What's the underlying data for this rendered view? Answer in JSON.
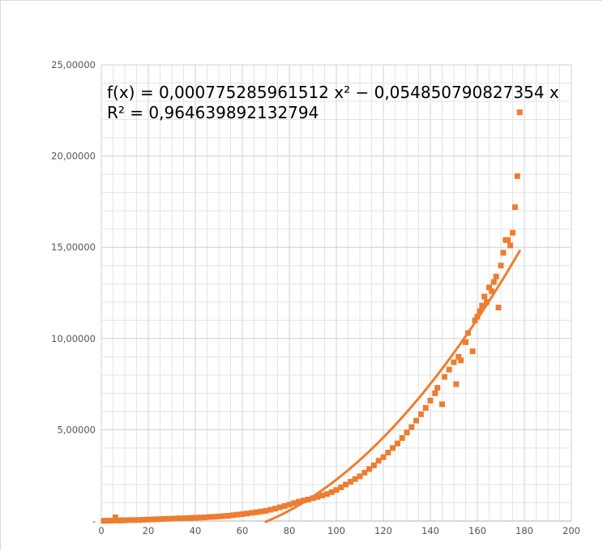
{
  "chart_data": {
    "type": "scatter",
    "title": "",
    "xlabel": "",
    "ylabel": "",
    "xlim": [
      0,
      200
    ],
    "ylim": [
      0,
      25
    ],
    "x_ticks": [
      "0",
      "20",
      "40",
      "60",
      "80",
      "100",
      "120",
      "140",
      "160",
      "180",
      "200"
    ],
    "y_ticks": [
      "-",
      "5,00000",
      "10,00000",
      "15,00000",
      "20,00000",
      "25,00000"
    ],
    "grid": true,
    "legend": "none",
    "marker_color": "#ed7d31",
    "trendline_color": "#ed7d31",
    "trendline_equation": "f(x) = 0,000775285961512 x² − 0,054850790827354 x",
    "trendline_r2": "R² = 0,964639892132794",
    "trendline": {
      "a": 0.000775285961512,
      "b": -0.054850790827354,
      "x_from": 70,
      "x_to": 178
    },
    "series": [
      {
        "x": [
          1,
          2,
          3,
          4,
          5,
          6,
          7,
          8,
          9,
          10,
          12,
          14,
          16,
          18,
          20,
          22,
          24,
          26,
          28,
          30,
          32,
          34,
          36,
          38,
          40,
          42,
          44,
          46,
          48,
          50,
          52,
          54,
          56,
          58,
          60,
          62,
          64,
          66,
          68,
          70,
          72,
          74,
          76,
          78,
          80,
          82,
          84,
          86,
          88,
          90,
          92,
          94,
          96,
          98,
          100,
          102,
          104,
          106,
          108,
          110,
          112,
          114,
          116,
          118,
          120,
          122,
          124,
          126,
          128,
          130,
          132,
          134,
          136,
          138,
          140,
          142,
          143,
          145,
          146,
          148,
          150,
          151,
          152,
          153,
          155,
          156,
          158,
          159,
          160,
          161,
          162,
          163,
          164,
          165,
          166,
          167,
          168,
          169,
          170,
          171,
          172,
          173,
          174,
          175,
          176,
          177,
          178
        ],
        "y": [
          0.01,
          0.02,
          0.02,
          0.02,
          0.03,
          0.2,
          0.03,
          0.03,
          0.04,
          0.04,
          0.05,
          0.05,
          0.06,
          0.07,
          0.08,
          0.09,
          0.1,
          0.11,
          0.12,
          0.13,
          0.14,
          0.15,
          0.16,
          0.17,
          0.18,
          0.19,
          0.2,
          0.22,
          0.23,
          0.25,
          0.27,
          0.29,
          0.32,
          0.35,
          0.38,
          0.41,
          0.45,
          0.48,
          0.52,
          0.56,
          0.62,
          0.68,
          0.75,
          0.82,
          0.9,
          0.98,
          1.06,
          1.12,
          1.18,
          1.25,
          1.32,
          1.4,
          1.48,
          1.58,
          1.7,
          1.85,
          2.0,
          2.15,
          2.3,
          2.45,
          2.65,
          2.85,
          3.05,
          3.3,
          3.5,
          3.75,
          4.0,
          4.25,
          4.55,
          4.85,
          5.15,
          5.5,
          5.85,
          6.2,
          6.6,
          7.0,
          7.3,
          6.4,
          7.9,
          8.3,
          8.7,
          7.5,
          9.0,
          8.8,
          9.8,
          10.3,
          9.3,
          11.0,
          11.2,
          11.5,
          11.8,
          12.3,
          12.0,
          12.8,
          12.6,
          13.1,
          13.4,
          11.7,
          14.0,
          14.7,
          15.4,
          15.4,
          15.1,
          15.8,
          17.2,
          18.9,
          22.4
        ]
      }
    ]
  }
}
